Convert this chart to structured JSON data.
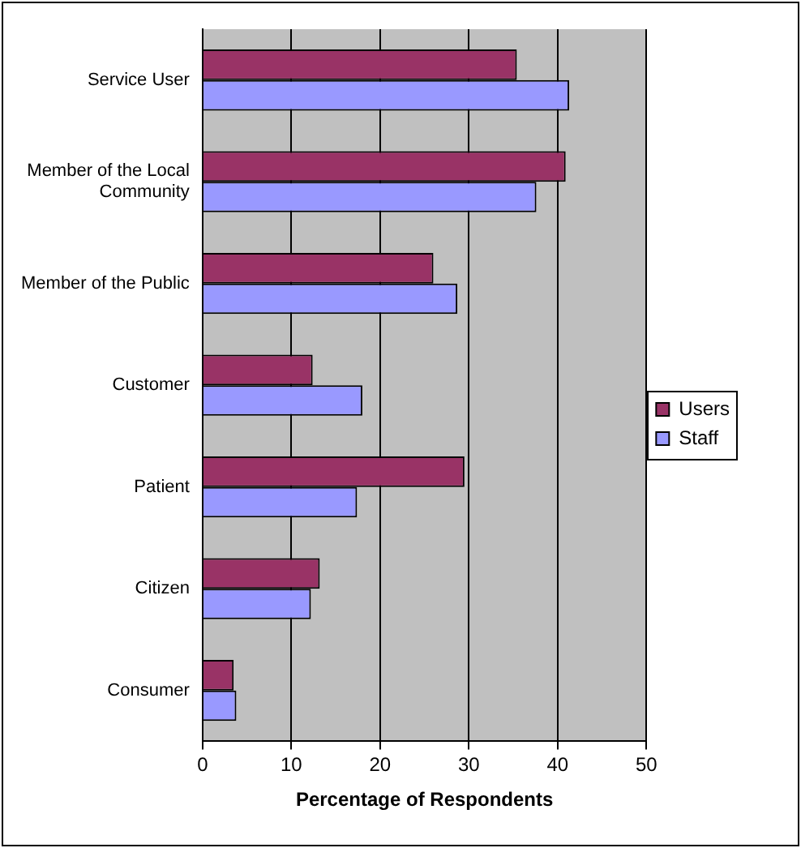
{
  "chart_data": {
    "type": "bar",
    "orientation": "horizontal",
    "xlabel": "Percentage of Respondents",
    "categories": [
      "Service User",
      "Member of the Local Community",
      "Member of the Public",
      "Customer",
      "Patient",
      "Citizen",
      "Consumer"
    ],
    "series": [
      {
        "name": "Users",
        "color": "#993366",
        "values": [
          35.4,
          40.9,
          26.0,
          12.4,
          29.5,
          13.2,
          3.5
        ]
      },
      {
        "name": "Staff",
        "color": "#9999ff",
        "values": [
          41.3,
          37.6,
          28.7,
          18.0,
          17.4,
          12.2,
          3.8
        ]
      }
    ],
    "xlim": [
      0,
      50
    ],
    "xticks": [
      0,
      10,
      20,
      30,
      40,
      50
    ],
    "grid": "x",
    "legend": "right"
  }
}
